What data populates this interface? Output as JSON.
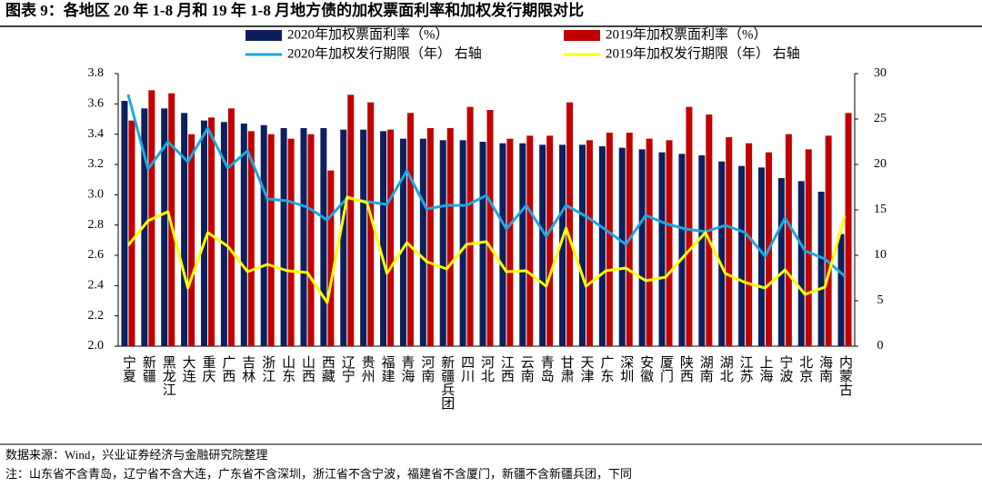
{
  "chart_data": {
    "type": "combo",
    "title": "图表 9：各地区 20 年 1-8 月和 19 年 1-8 月地方债的加权票面利率和加权发行期限对比",
    "source": "数据来源：Wind，兴业证券经济与金融研究院整理",
    "note": "注：山东省不含青岛，辽宁省不含大连，广东省不含深圳，浙江省不含宁波，福建省不含厦门，新疆不含新疆兵团，下同",
    "categories": [
      "宁夏",
      "新疆",
      "黑龙江",
      "大连",
      "重庆",
      "广西",
      "吉林",
      "浙江",
      "山东",
      "山西",
      "西藏",
      "辽宁",
      "贵州",
      "福建",
      "青海",
      "河南",
      "新疆兵团",
      "四川",
      "河北",
      "江西",
      "云南",
      "青岛",
      "甘肃",
      "天津",
      "广东",
      "深圳",
      "安徽",
      "厦门",
      "陕西",
      "湖南",
      "湖北",
      "江苏",
      "上海",
      "宁波",
      "北京",
      "海南",
      "内蒙古"
    ],
    "series": [
      {
        "name": "2020年加权票面利率（%）",
        "type": "bar",
        "color": "#0d1f5c",
        "values": [
          3.62,
          3.57,
          3.57,
          3.54,
          3.49,
          3.48,
          3.47,
          3.46,
          3.44,
          3.44,
          3.44,
          3.43,
          3.43,
          3.42,
          3.37,
          3.37,
          3.36,
          3.36,
          3.35,
          3.34,
          3.34,
          3.33,
          3.33,
          3.33,
          3.32,
          3.31,
          3.3,
          3.28,
          3.27,
          3.26,
          3.22,
          3.19,
          3.18,
          3.11,
          3.09,
          3.02,
          2.74
        ]
      },
      {
        "name": "2019年加权票面利率（%）",
        "type": "bar",
        "color": "#c00000",
        "values": [
          3.49,
          3.69,
          3.67,
          3.4,
          3.51,
          3.57,
          3.42,
          3.4,
          3.37,
          3.4,
          3.16,
          3.66,
          3.61,
          3.43,
          3.54,
          3.44,
          3.44,
          3.58,
          3.56,
          3.37,
          3.39,
          3.39,
          3.61,
          3.36,
          3.41,
          3.41,
          3.37,
          3.36,
          3.58,
          3.53,
          3.38,
          3.34,
          3.28,
          3.4,
          3.3,
          3.39,
          3.54
        ]
      },
      {
        "name": "2020年加权发行期限（年） 右轴",
        "type": "line",
        "axis": "y2",
        "color": "#1ea7e0",
        "values": [
          27.7,
          19.5,
          22.5,
          20.3,
          24,
          19.6,
          21.5,
          16.2,
          16,
          15.3,
          13.9,
          16.3,
          15.9,
          15.6,
          19.3,
          15.1,
          15.5,
          15.5,
          16.6,
          12.9,
          15.5,
          12.1,
          15.5,
          14.3,
          12.8,
          11.2,
          14.4,
          13.5,
          12.9,
          12.6,
          13.3,
          12.5,
          9.9,
          14.1,
          10.5,
          9.6,
          7.7
        ]
      },
      {
        "name": "2019年加权发行期限（年） 右轴",
        "type": "line",
        "axis": "y2",
        "color": "#ffff00",
        "values": [
          11.1,
          13.8,
          14.8,
          6.4,
          12.5,
          11,
          8.2,
          9,
          8.3,
          8.1,
          4.8,
          16.4,
          15.8,
          8,
          11.4,
          9.3,
          8.5,
          11.2,
          11.5,
          8.2,
          8.3,
          6.6,
          13,
          6.6,
          8.3,
          8.6,
          7.2,
          7.6,
          10.1,
          12.5,
          8,
          7,
          6.4,
          8.4,
          5.7,
          6.5,
          14.3
        ]
      }
    ],
    "ylim": [
      2.0,
      3.8
    ],
    "yticks": [
      {
        "value": 2.0,
        "label": "2.0"
      },
      {
        "value": 2.2,
        "label": "2.2"
      },
      {
        "value": 2.4,
        "label": "2.4"
      },
      {
        "value": 2.6,
        "label": "2.6"
      },
      {
        "value": 2.8,
        "label": "2.8"
      },
      {
        "value": 3.0,
        "label": "3.0"
      },
      {
        "value": 3.2,
        "label": "3.2"
      },
      {
        "value": 3.4,
        "label": "3.4"
      },
      {
        "value": 3.6,
        "label": "3.6"
      },
      {
        "value": 3.8,
        "label": "3.8"
      }
    ],
    "y2lim": [
      0,
      30
    ],
    "y2ticks": [
      0,
      5,
      10,
      15,
      20,
      25,
      30
    ],
    "grid": false
  }
}
